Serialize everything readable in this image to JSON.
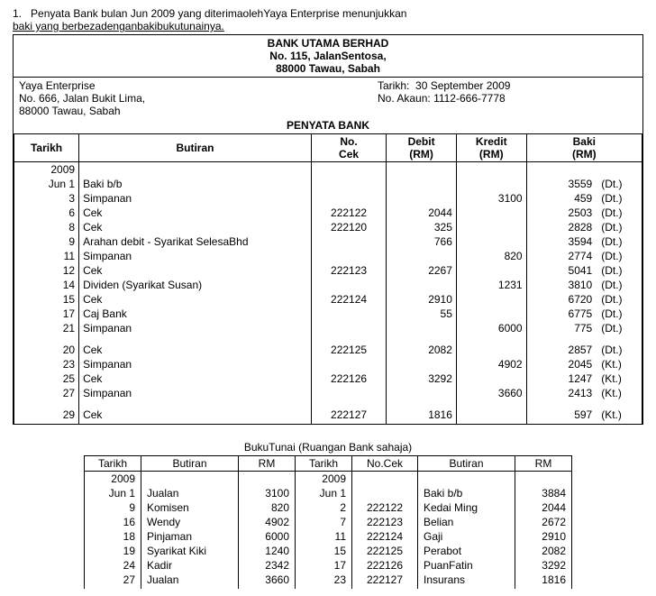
{
  "intro": {
    "num": "1.",
    "line1": "Penyata Bank bulan Jun 2009 yang diterimaolehYaya Enterprise menunjukkan",
    "line2": "baki yang berbezadenganbakibukutunainya."
  },
  "bank": {
    "name": "BANK UTAMA BERHAD",
    "addr1": "No. 115, JalanSentosa,",
    "addr2": "88000 Tawau, Sabah",
    "cust_name": "Yaya Enterprise",
    "cust_addr1": "No. 666, Jalan Bukit Lima,",
    "cust_addr2": "88000 Tawau, Sabah",
    "date_label": "Tarikh:",
    "date_value": "30 September 2009",
    "acct_label": "No. Akaun:",
    "acct_value": "1112-666-7778",
    "statement_title": "PENYATA BANK",
    "headers": {
      "tarikh": "Tarikh",
      "butiran": "Butiran",
      "nocek": "No. Cek",
      "debit": "Debit (RM)",
      "kredit": "Kredit (RM)",
      "baki": "Baki (RM)"
    },
    "year": "2009",
    "rows": [
      {
        "tarikh": "Jun 1",
        "butiran": "Baki b/b",
        "nocek": "",
        "debit": "",
        "kredit": "",
        "baki": "3559",
        "suf": "(Dt.)"
      },
      {
        "tarikh": "3",
        "butiran": "Simpanan",
        "nocek": "",
        "debit": "",
        "kredit": "3100",
        "baki": "459",
        "suf": "(Dt.)"
      },
      {
        "tarikh": "6",
        "butiran": "Cek",
        "nocek": "222122",
        "debit": "2044",
        "kredit": "",
        "baki": "2503",
        "suf": "(Dt.)"
      },
      {
        "tarikh": "8",
        "butiran": "Cek",
        "nocek": "222120",
        "debit": "325",
        "kredit": "",
        "baki": "2828",
        "suf": "(Dt.)"
      },
      {
        "tarikh": "9",
        "butiran": "Arahan debit - Syarikat SelesaBhd",
        "nocek": "",
        "debit": "766",
        "kredit": "",
        "baki": "3594",
        "suf": "(Dt.)"
      },
      {
        "tarikh": "11",
        "butiran": "Simpanan",
        "nocek": "",
        "debit": "",
        "kredit": "820",
        "baki": "2774",
        "suf": "(Dt.)"
      },
      {
        "tarikh": "12",
        "butiran": "Cek",
        "nocek": "222123",
        "debit": "2267",
        "kredit": "",
        "baki": "5041",
        "suf": "(Dt.)"
      },
      {
        "tarikh": "14",
        "butiran": "Dividen (Syarikat Susan)",
        "nocek": "",
        "debit": "",
        "kredit": "1231",
        "baki": "3810",
        "suf": "(Dt.)"
      },
      {
        "tarikh": "15",
        "butiran": "Cek",
        "nocek": "222124",
        "debit": "2910",
        "kredit": "",
        "baki": "6720",
        "suf": "(Dt.)"
      },
      {
        "tarikh": "17",
        "butiran": "Caj Bank",
        "nocek": "",
        "debit": "55",
        "kredit": "",
        "baki": "6775",
        "suf": "(Dt.)"
      },
      {
        "tarikh": "21",
        "butiran": "Simpanan",
        "nocek": "",
        "debit": "",
        "kredit": "6000",
        "baki": "775",
        "suf": "(Dt.)"
      },
      {
        "tarikh": "20",
        "butiran": "Cek",
        "nocek": "222125",
        "debit": "2082",
        "kredit": "",
        "baki": "2857",
        "suf": "(Dt.)"
      },
      {
        "tarikh": "23",
        "butiran": "Simpanan",
        "nocek": "",
        "debit": "",
        "kredit": "4902",
        "baki": "2045",
        "suf": "(Kt.)"
      },
      {
        "tarikh": "25",
        "butiran": "Cek",
        "nocek": "222126",
        "debit": "3292",
        "kredit": "",
        "baki": "1247",
        "suf": "(Kt.)"
      },
      {
        "tarikh": "27",
        "butiran": "Simpanan",
        "nocek": "",
        "debit": "",
        "kredit": "3660",
        "baki": "2413",
        "suf": "(Kt.)"
      },
      {
        "tarikh": "29",
        "butiran": "Cek",
        "nocek": "222127",
        "debit": "1816",
        "kredit": "",
        "baki": "597",
        "suf": "(Kt.)"
      }
    ],
    "gap_after_indices": [
      10,
      14
    ]
  },
  "buku": {
    "title": "BukuTunai (Ruangan Bank sahaja)",
    "headers": {
      "tarikh": "Tarikh",
      "butiran": "Butiran",
      "rm": "RM",
      "nocek": "No.Cek"
    },
    "year": "2009",
    "left": [
      {
        "tarikh": "Jun  1",
        "butiran": "Jualan",
        "rm": "3100"
      },
      {
        "tarikh": "9",
        "butiran": "Komisen",
        "rm": "820"
      },
      {
        "tarikh": "16",
        "butiran": "Wendy",
        "rm": "4902"
      },
      {
        "tarikh": "18",
        "butiran": "Pinjaman",
        "rm": "6000"
      },
      {
        "tarikh": "19",
        "butiran": "  Syarikat Kiki",
        "rm": "1240"
      },
      {
        "tarikh": "24",
        "butiran": "Kadir",
        "rm": "2342"
      },
      {
        "tarikh": "27",
        "butiran": "Jualan",
        "rm": "3660"
      }
    ],
    "right": [
      {
        "tarikh": "Jun 1",
        "nocek": "",
        "butiran": "Baki b/b",
        "rm": "3884"
      },
      {
        "tarikh": "2",
        "nocek": "222122",
        "butiran": "Kedai Ming",
        "rm": "2044"
      },
      {
        "tarikh": "7",
        "nocek": "222123",
        "butiran": "Belian",
        "rm": "2672"
      },
      {
        "tarikh": "11",
        "nocek": "222124",
        "butiran": "Gaji",
        "rm": "2910"
      },
      {
        "tarikh": "15",
        "nocek": "222125",
        "butiran": "Perabot",
        "rm": "2082"
      },
      {
        "tarikh": "17",
        "nocek": "222126",
        "butiran": "PuanFatin",
        "rm": "3292"
      },
      {
        "tarikh": "23",
        "nocek": "222127",
        "butiran": "Insurans",
        "rm": "1816"
      }
    ]
  }
}
